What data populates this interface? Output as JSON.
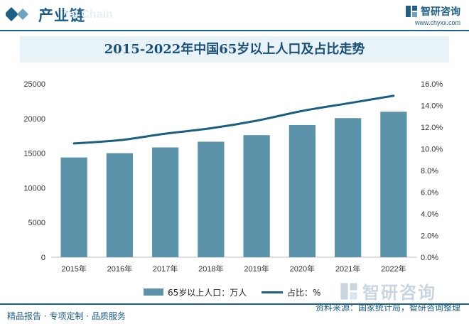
{
  "header": {
    "title": "产业链",
    "watermark": "ial Chain",
    "brand_name": "智研咨询",
    "brand_url": "www.chyxx.com"
  },
  "chart_data": {
    "type": "bar+line",
    "title": "2015-2022年中国65岁以上人口及占比走势",
    "categories": [
      "2015年",
      "2016年",
      "2017年",
      "2018年",
      "2019年",
      "2020年",
      "2021年",
      "2022年"
    ],
    "series": [
      {
        "name": "65岁以上人口：万人",
        "type": "bar",
        "axis": "left",
        "color": "#5b93ab",
        "values": [
          14386,
          15003,
          15831,
          16658,
          17603,
          19064,
          20056,
          20978
        ]
      },
      {
        "name": "占比：%",
        "type": "line",
        "axis": "right",
        "color": "#1b5f80",
        "values": [
          10.5,
          10.8,
          11.4,
          11.9,
          12.6,
          13.5,
          14.2,
          14.9
        ]
      }
    ],
    "y_left": {
      "min": 0,
      "max": 25000,
      "ticks": [
        "0",
        "5000",
        "10000",
        "15000",
        "20000",
        "25000"
      ]
    },
    "y_right": {
      "min": 0,
      "max": 16,
      "ticks": [
        "0.0%",
        "2.0%",
        "4.0%",
        "6.0%",
        "8.0%",
        "10.0%",
        "12.0%",
        "14.0%",
        "16.0%"
      ]
    },
    "legend_position": "bottom"
  },
  "footer": {
    "left": "精品报告 · 专项定制 · 品质服务",
    "right": "资料来源：国家统计局，智研咨询整理",
    "brand_name": "智研咨询"
  }
}
